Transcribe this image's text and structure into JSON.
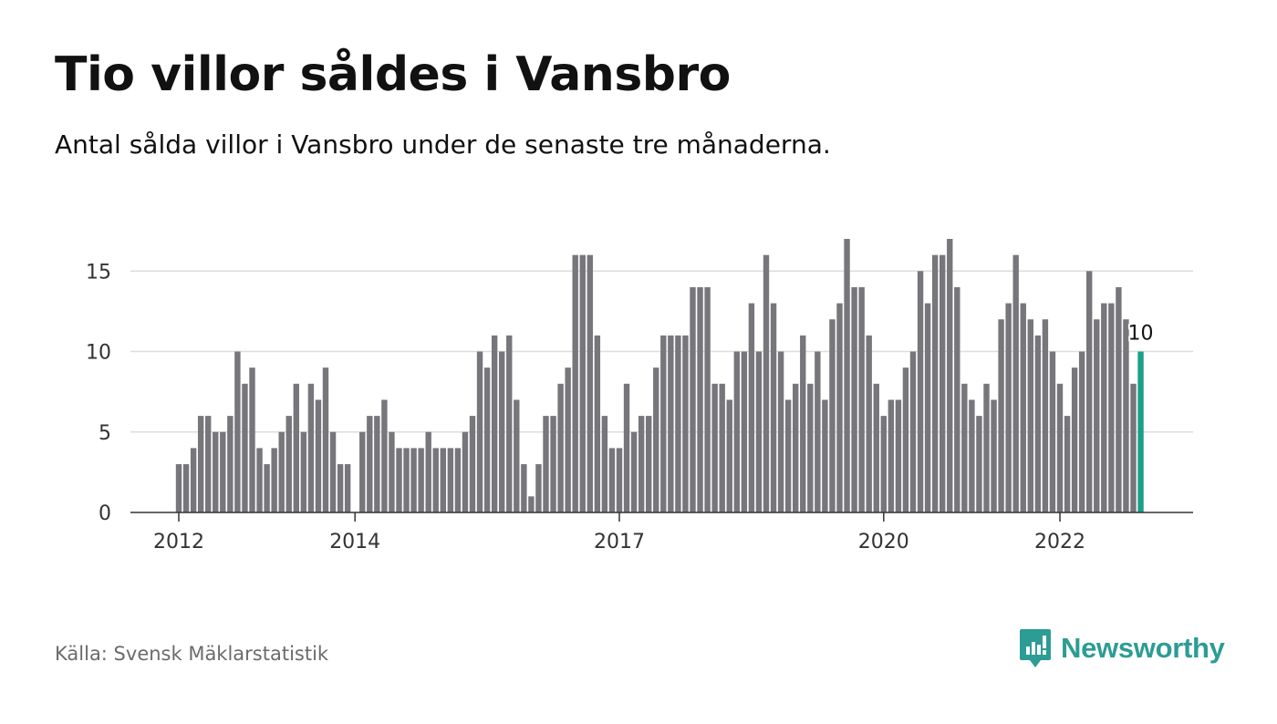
{
  "header": {
    "title": "Tio villor såldes i Vansbro",
    "subtitle": "Antal sålda villor i Vansbro under de senaste tre månaderna."
  },
  "footer": {
    "source": "Källa: Svensk Mäklarstatistik",
    "brand": "Newsworthy"
  },
  "colors": {
    "bar": "#77767b",
    "highlight": "#1b9e8a",
    "grid": "#dddddd",
    "axis": "#333333",
    "brand": "#2c9c94"
  },
  "chart_data": {
    "type": "bar",
    "start_month": "2012-01",
    "end_month": "2022-12",
    "y_ticks": [
      0,
      5,
      10,
      15
    ],
    "ylim": [
      0,
      17
    ],
    "x_ticks": [
      "2012",
      "2014",
      "2017",
      "2020",
      "2022"
    ],
    "grid": true,
    "highlight_label": "10",
    "values": [
      3,
      3,
      4,
      6,
      6,
      5,
      5,
      6,
      10,
      8,
      9,
      4,
      3,
      4,
      5,
      6,
      8,
      5,
      8,
      7,
      9,
      5,
      3,
      3,
      0,
      5,
      6,
      6,
      7,
      5,
      4,
      4,
      4,
      4,
      5,
      4,
      4,
      4,
      4,
      5,
      6,
      10,
      9,
      11,
      10,
      11,
      7,
      3,
      1,
      3,
      6,
      6,
      8,
      9,
      16,
      16,
      16,
      11,
      6,
      4,
      4,
      8,
      5,
      6,
      6,
      9,
      11,
      11,
      11,
      11,
      14,
      14,
      14,
      8,
      8,
      7,
      10,
      10,
      13,
      10,
      16,
      13,
      10,
      7,
      8,
      11,
      8,
      10,
      7,
      12,
      13,
      17,
      14,
      14,
      11,
      8,
      6,
      7,
      7,
      9,
      10,
      15,
      13,
      16,
      16,
      17,
      14,
      8,
      7,
      6,
      8,
      7,
      12,
      13,
      16,
      13,
      12,
      11,
      12,
      10,
      8,
      6,
      9,
      10,
      15,
      12,
      13,
      13,
      14,
      12,
      8,
      10
    ]
  }
}
